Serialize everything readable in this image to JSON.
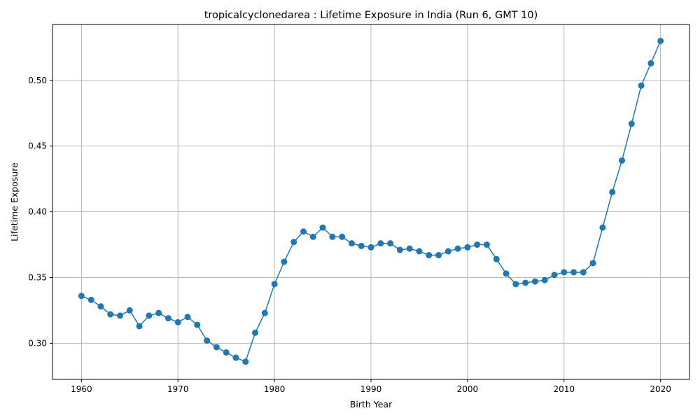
{
  "chart_data": {
    "type": "line",
    "title": "tropicalcyclonedarea : Lifetime Exposure in India (Run 6, GMT 10)",
    "xlabel": "Birth Year",
    "ylabel": "Lifetime Exposure",
    "xlim": [
      1957,
      2023
    ],
    "ylim": [
      0.2725,
      0.5425
    ],
    "xticks": [
      1960,
      1970,
      1980,
      1990,
      2000,
      2010,
      2020
    ],
    "xtick_labels": [
      "1960",
      "1970",
      "1980",
      "1990",
      "2000",
      "2010",
      "2020"
    ],
    "yticks": [
      0.3,
      0.35,
      0.4,
      0.45,
      0.5
    ],
    "ytick_labels": [
      "0.30",
      "0.35",
      "0.40",
      "0.45",
      "0.50"
    ],
    "grid": true,
    "legend": "none",
    "color": "#1f77b4",
    "marker": "circle",
    "x": [
      1960,
      1961,
      1962,
      1963,
      1964,
      1965,
      1966,
      1967,
      1968,
      1969,
      1970,
      1971,
      1972,
      1973,
      1974,
      1975,
      1976,
      1977,
      1978,
      1979,
      1980,
      1981,
      1982,
      1983,
      1984,
      1985,
      1986,
      1987,
      1988,
      1989,
      1990,
      1991,
      1992,
      1993,
      1994,
      1995,
      1996,
      1997,
      1998,
      1999,
      2000,
      2001,
      2002,
      2003,
      2004,
      2005,
      2006,
      2007,
      2008,
      2009,
      2010,
      2011,
      2012,
      2013,
      2014,
      2015,
      2016,
      2017,
      2018,
      2019,
      2020
    ],
    "y": [
      0.336,
      0.333,
      0.328,
      0.322,
      0.321,
      0.325,
      0.313,
      0.321,
      0.323,
      0.319,
      0.316,
      0.32,
      0.314,
      0.302,
      0.297,
      0.293,
      0.289,
      0.286,
      0.308,
      0.323,
      0.345,
      0.362,
      0.377,
      0.385,
      0.381,
      0.388,
      0.381,
      0.381,
      0.376,
      0.374,
      0.373,
      0.376,
      0.376,
      0.371,
      0.372,
      0.37,
      0.367,
      0.367,
      0.37,
      0.372,
      0.373,
      0.375,
      0.375,
      0.364,
      0.353,
      0.345,
      0.346,
      0.347,
      0.348,
      0.352,
      0.354,
      0.354,
      0.354,
      0.361,
      0.388,
      0.415,
      0.439,
      0.467,
      0.496,
      0.513,
      0.53
    ]
  }
}
